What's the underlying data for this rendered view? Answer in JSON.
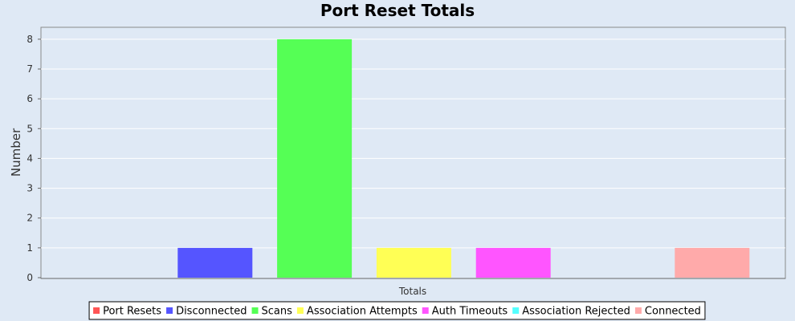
{
  "chart_data": {
    "type": "bar",
    "title": "Port Reset Totals",
    "xlabel": "Totals",
    "ylabel": "Number",
    "categories": [
      "Totals"
    ],
    "ylim": [
      0,
      8.4
    ],
    "yticks": [
      0,
      1,
      2,
      3,
      4,
      5,
      6,
      7,
      8
    ],
    "grid": true,
    "legend_position": "bottom",
    "series": [
      {
        "name": "Port Resets",
        "values": [
          0
        ],
        "color": "#ff5555"
      },
      {
        "name": "Disconnected",
        "values": [
          1
        ],
        "color": "#5555ff"
      },
      {
        "name": "Scans",
        "values": [
          8
        ],
        "color": "#55ff55"
      },
      {
        "name": "Association Attempts",
        "values": [
          1
        ],
        "color": "#ffff55"
      },
      {
        "name": "Auth Timeouts",
        "values": [
          1
        ],
        "color": "#ff55ff"
      },
      {
        "name": "Association Rejected",
        "values": [
          0
        ],
        "color": "#55ffff"
      },
      {
        "name": "Connected",
        "values": [
          1
        ],
        "color": "#ffaaaa"
      }
    ]
  }
}
